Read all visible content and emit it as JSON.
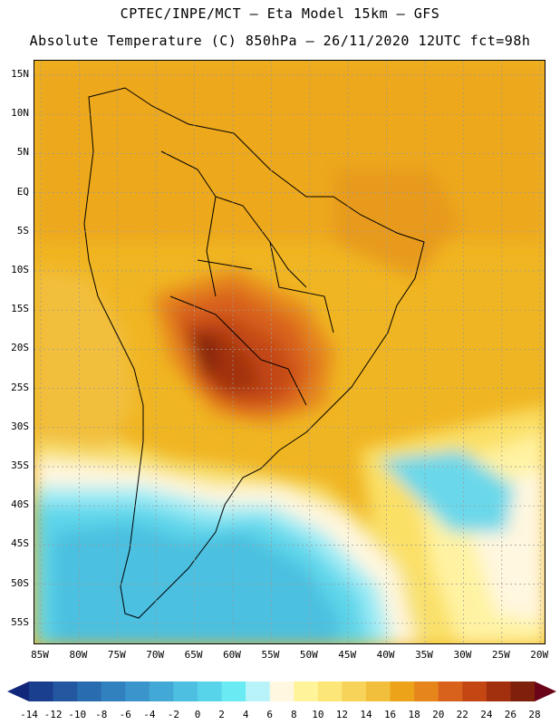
{
  "title": {
    "line1": "CPTEC/INPE/MCT –  Eta Model 15km – GFS",
    "line2": "Absolute Temperature (C) 850hPa – 26/11/2020 12UTC fct=98h"
  },
  "map": {
    "lat_labels": [
      "15N",
      "10N",
      "5N",
      "EQ",
      "5S",
      "10S",
      "15S",
      "20S",
      "25S",
      "30S",
      "35S",
      "40S",
      "45S",
      "50S",
      "55S"
    ],
    "lon_labels": [
      "85W",
      "80W",
      "75W",
      "70W",
      "65W",
      "60W",
      "55W",
      "50W",
      "45W",
      "40W",
      "35W",
      "30W",
      "25W",
      "20W"
    ],
    "region": "South America"
  },
  "colorbar": {
    "labels": [
      "-14",
      "-12",
      "-10",
      "-8",
      "-6",
      "-4",
      "-2",
      "0",
      "2",
      "4",
      "6",
      "8",
      "10",
      "12",
      "14",
      "16",
      "18",
      "20",
      "22",
      "24",
      "26",
      "28"
    ],
    "colors": [
      "#1a3f8f",
      "#2358a0",
      "#2a6cb0",
      "#3181bf",
      "#3a95cc",
      "#42a9d6",
      "#4dbfe0",
      "#58d4ea",
      "#6aeaf2",
      "#b9f3fa",
      "#fff7df",
      "#fff49a",
      "#fce677",
      "#f7d35a",
      "#f2bf3c",
      "#eca31a",
      "#e5851c",
      "#d8611b",
      "#c34613",
      "#a2300f",
      "#7e200c"
    ],
    "under_color": "#11277a",
    "over_color": "#6a0418"
  }
}
